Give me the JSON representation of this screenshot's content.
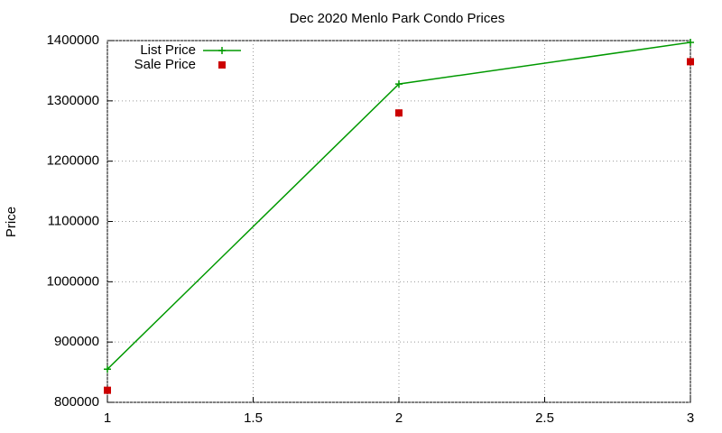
{
  "chart_data": {
    "type": "line",
    "title": "Dec 2020 Menlo Park Condo Prices",
    "y_label": "Price",
    "x": [
      1,
      2,
      3
    ],
    "series": [
      {
        "name": "List Price",
        "color": "#009900",
        "mode": "lines+markers",
        "values": [
          855000,
          1328000,
          1397000
        ]
      },
      {
        "name": "Sale Price",
        "color": "#cc0000",
        "mode": "markers",
        "values": [
          820000,
          1280000,
          1365000
        ]
      }
    ],
    "xlim": [
      1,
      3
    ],
    "xticks": [
      1,
      1.5,
      2,
      2.5,
      3
    ],
    "ylim": [
      800000,
      1400000
    ],
    "yticks": [
      800000,
      900000,
      1000000,
      1100000,
      1200000,
      1300000,
      1400000
    ],
    "grid": true,
    "legend": "top-left"
  }
}
